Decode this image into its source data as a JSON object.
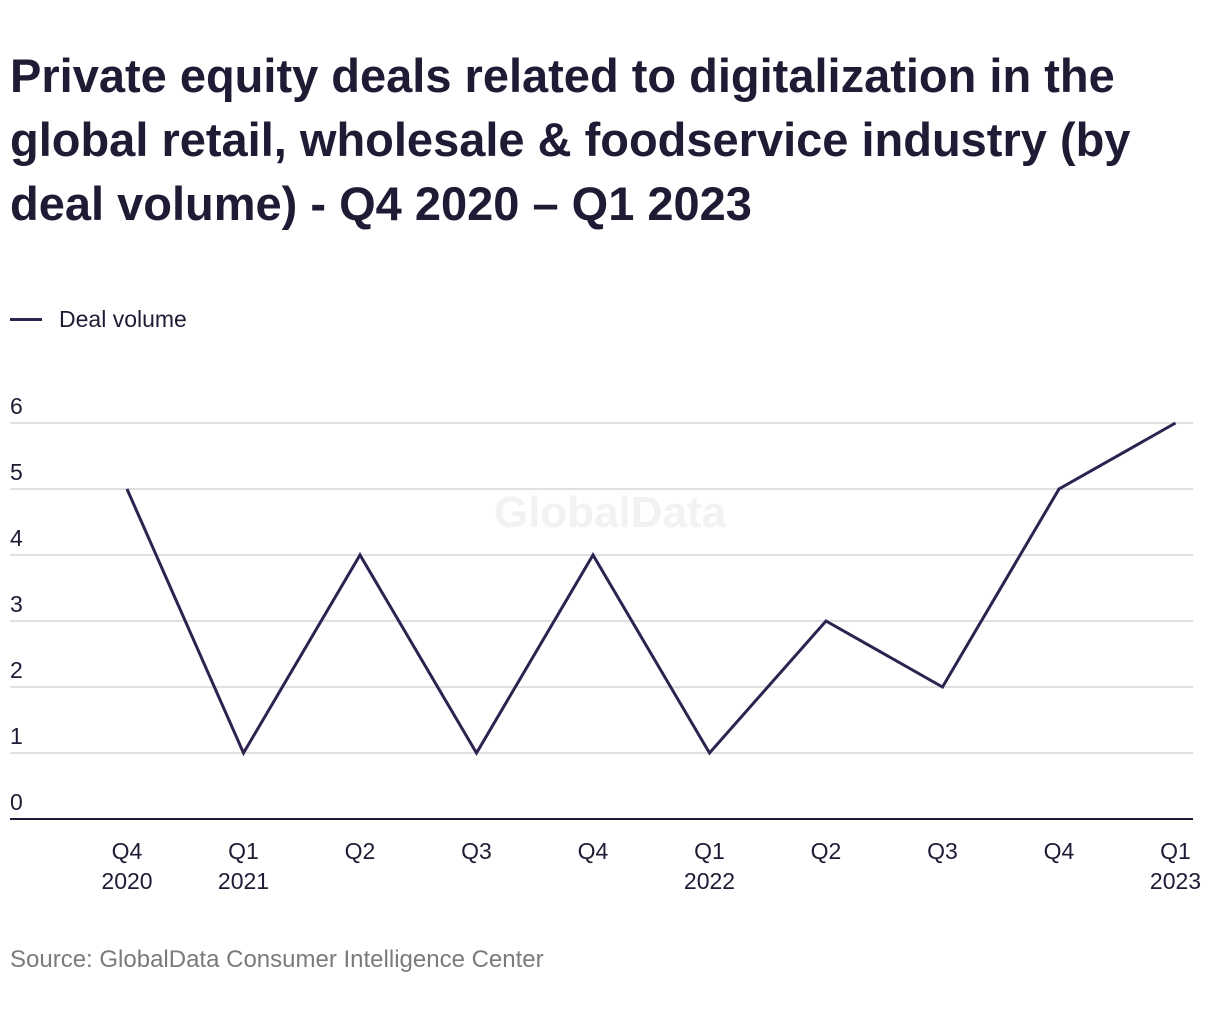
{
  "chart_data": {
    "type": "line",
    "title": "Private equity deals related to digitalization in the global retail, wholesale & foodservice industry (by deal volume) - Q4 2020 – Q1 2023",
    "categories": [
      [
        "Q4",
        "2020"
      ],
      [
        "Q1",
        "2021"
      ],
      [
        "Q2"
      ],
      [
        "Q3"
      ],
      [
        "Q4"
      ],
      [
        "Q1",
        "2022"
      ],
      [
        "Q2"
      ],
      [
        "Q3"
      ],
      [
        "Q4"
      ],
      [
        "Q1",
        "2023"
      ]
    ],
    "series": [
      {
        "name": "Deal volume",
        "values": [
          5,
          1,
          4,
          1,
          4,
          1,
          3,
          2,
          5,
          6
        ],
        "color": "#2d2250"
      }
    ],
    "ylim": [
      0,
      6
    ],
    "yticks": [
      0,
      1,
      2,
      3,
      4,
      5,
      6
    ],
    "xlabel": "",
    "ylabel": "",
    "grid": true,
    "legend_position": "top-left",
    "watermark": "GlobalData",
    "source": "Source: GlobalData Consumer Intelligence Center"
  }
}
